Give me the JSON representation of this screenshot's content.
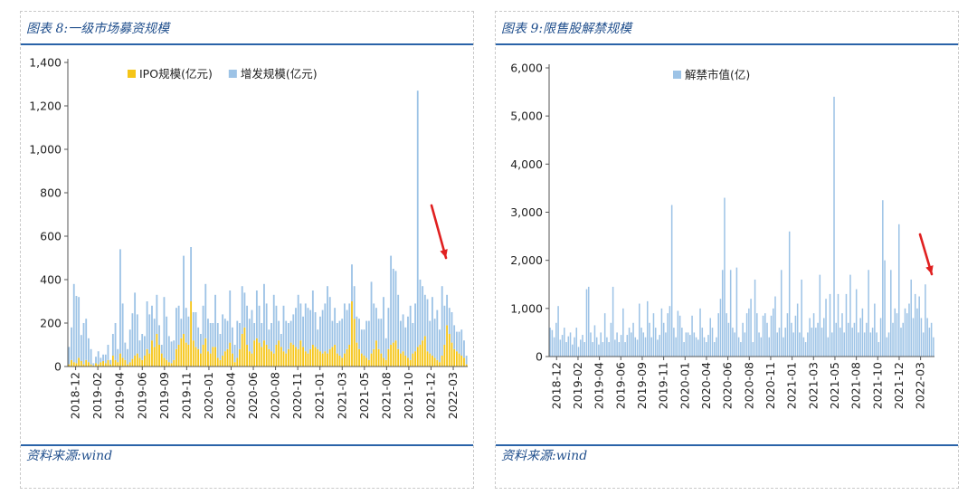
{
  "colors": {
    "ipo": "#f5c518",
    "fa": "#9dc3e6",
    "unlock": "#9dc3e6",
    "accent": "#1f4e8c",
    "arrow": "#e02020"
  },
  "left": {
    "figure_label": "图表 8:一级市场募资规模",
    "source": "资料来源:wind"
  },
  "right": {
    "figure_label": "图表 9:限售股解禁规模",
    "source": "资料来源:wind"
  },
  "chart_data": [
    {
      "type": "bar",
      "stacked": true,
      "title": "",
      "ylim": [
        0,
        1400
      ],
      "y_ticks": [
        "0",
        "200",
        "400",
        "600",
        "800",
        "1,000",
        "1,200",
        "1,400"
      ],
      "y_tick_values": [
        0,
        200,
        400,
        600,
        800,
        1000,
        1200,
        1400
      ],
      "x_tick_labels": [
        "2018-12",
        "2019-02",
        "2019-04",
        "2019-06",
        "2019-09",
        "2019-11",
        "2020-01",
        "2020-04",
        "2020-06",
        "2020-08",
        "2020-11",
        "2021-01",
        "2021-03",
        "2021-05",
        "2021-08",
        "2021-10",
        "2021-12",
        "2022-03"
      ],
      "legend_position": "top",
      "grid": false,
      "series": [
        {
          "name": "IPO规模(亿元)",
          "color": "#f5c518",
          "values": [
            10,
            30,
            20,
            15,
            40,
            25,
            10,
            30,
            20,
            10,
            5,
            15,
            10,
            20,
            25,
            15,
            30,
            10,
            50,
            30,
            20,
            60,
            40,
            30,
            10,
            20,
            35,
            50,
            60,
            40,
            30,
            50,
            80,
            60,
            120,
            90,
            150,
            100,
            60,
            40,
            30,
            20,
            15,
            30,
            80,
            100,
            130,
            150,
            110,
            100,
            300,
            120,
            90,
            80,
            60,
            100,
            130,
            70,
            60,
            90,
            90,
            40,
            30,
            50,
            70,
            80,
            110,
            60,
            20,
            40,
            80,
            150,
            180,
            100,
            70,
            60,
            120,
            130,
            110,
            90,
            120,
            100,
            80,
            70,
            60,
            100,
            120,
            90,
            70,
            60,
            80,
            110,
            100,
            90,
            80,
            120,
            90,
            70,
            60,
            80,
            100,
            90,
            80,
            70,
            60,
            70,
            60,
            80,
            90,
            100,
            60,
            50,
            40,
            60,
            80,
            100,
            300,
            220,
            110,
            80,
            60,
            50,
            40,
            30,
            60,
            80,
            120,
            80,
            60,
            40,
            30,
            80,
            100,
            110,
            120,
            80,
            60,
            70,
            50,
            40,
            30,
            60,
            70,
            90,
            100,
            120,
            140,
            70,
            60,
            50,
            40,
            30,
            20,
            50,
            100,
            190,
            150,
            110,
            80,
            70,
            60,
            50,
            40,
            10
          ]
        },
        {
          "name": "增发规模(亿元)",
          "color": "#9dc3e6",
          "values": [
            80,
            150,
            360,
            310,
            280,
            120,
            190,
            190,
            110,
            70,
            10,
            30,
            60,
            20,
            30,
            40,
            70,
            20,
            100,
            170,
            60,
            480,
            250,
            80,
            70,
            150,
            210,
            290,
            180,
            80,
            120,
            90,
            220,
            180,
            160,
            130,
            180,
            90,
            40,
            280,
            200,
            120,
            100,
            90,
            190,
            180,
            90,
            360,
            160,
            130,
            250,
            130,
            160,
            100,
            90,
            180,
            250,
            150,
            140,
            110,
            240,
            160,
            120,
            190,
            150,
            130,
            240,
            120,
            80,
            170,
            120,
            220,
            160,
            180,
            150,
            200,
            80,
            220,
            170,
            110,
            260,
            190,
            90,
            130,
            270,
            180,
            90,
            60,
            210,
            150,
            120,
            100,
            140,
            180,
            250,
            170,
            140,
            220,
            210,
            180,
            250,
            160,
            90,
            160,
            200,
            220,
            310,
            240,
            120,
            170,
            140,
            160,
            180,
            230,
            180,
            190,
            170,
            150,
            120,
            140,
            110,
            120,
            170,
            180,
            330,
            210,
            150,
            140,
            160,
            280,
            100,
            190,
            410,
            340,
            320,
            250,
            150,
            170,
            130,
            190,
            250,
            140,
            220,
            1180,
            300,
            250,
            190,
            240,
            150,
            270,
            180,
            230,
            150,
            320,
            180,
            140,
            120,
            140,
            110,
            90,
            100,
            120,
            80,
            40,
            50,
            120,
            170
          ]
        }
      ]
    },
    {
      "type": "bar",
      "title": "",
      "ylim": [
        0,
        6000
      ],
      "y_ticks": [
        "0",
        "1,000",
        "2,000",
        "3,000",
        "4,000",
        "5,000",
        "6,000"
      ],
      "y_tick_values": [
        0,
        1000,
        2000,
        3000,
        4000,
        5000,
        6000
      ],
      "x_tick_labels": [
        "2018-12",
        "2019-02",
        "2019-04",
        "2019-06",
        "2019-09",
        "2019-11",
        "2020-01",
        "2020-04",
        "2020-06",
        "2020-08",
        "2020-11",
        "2021-01",
        "2021-03",
        "2021-05",
        "2021-08",
        "2021-10",
        "2021-12",
        "2022-03"
      ],
      "legend_position": "top",
      "grid": false,
      "series": [
        {
          "name": "解禁市值(亿)",
          "color": "#9dc3e6",
          "values": [
            600,
            550,
            400,
            700,
            1050,
            350,
            450,
            600,
            300,
            420,
            500,
            250,
            400,
            600,
            200,
            350,
            450,
            300,
            1400,
            1450,
            500,
            300,
            650,
            400,
            250,
            500,
            300,
            900,
            400,
            300,
            700,
            1450,
            350,
            500,
            300,
            450,
            1000,
            300,
            450,
            600,
            500,
            700,
            400,
            350,
            1100,
            600,
            500,
            400,
            1150,
            700,
            400,
            900,
            600,
            350,
            450,
            1000,
            700,
            500,
            900,
            1050,
            3150,
            600,
            400,
            950,
            850,
            600,
            300,
            500,
            500,
            450,
            850,
            500,
            400,
            350,
            1000,
            600,
            400,
            300,
            450,
            800,
            600,
            300,
            400,
            900,
            1200,
            1800,
            3300,
            900,
            700,
            1800,
            600,
            500,
            1850,
            400,
            300,
            700,
            500,
            900,
            1000,
            1200,
            300,
            1600,
            900,
            500,
            400,
            850,
            900,
            700,
            400,
            850,
            1000,
            1250,
            500,
            600,
            1800,
            400,
            600,
            900,
            2600,
            700,
            500,
            850,
            1100,
            500,
            1600,
            400,
            300,
            500,
            800,
            600,
            900,
            600,
            700,
            1700,
            600,
            800,
            1200,
            400,
            1300,
            500,
            5400,
            700,
            1300,
            600,
            900,
            500,
            1300,
            700,
            1700,
            600,
            700,
            1400,
            500,
            800,
            1000,
            500,
            700,
            1800,
            500,
            600,
            1100,
            500,
            300,
            800,
            3250,
            2000,
            400,
            500,
            1800,
            700,
            1000,
            900,
            2750,
            600,
            700,
            1000,
            900,
            1100,
            1600,
            800,
            1300,
            1000,
            1250,
            800,
            500,
            1500,
            800,
            600,
            700,
            400
          ]
        }
      ]
    }
  ]
}
